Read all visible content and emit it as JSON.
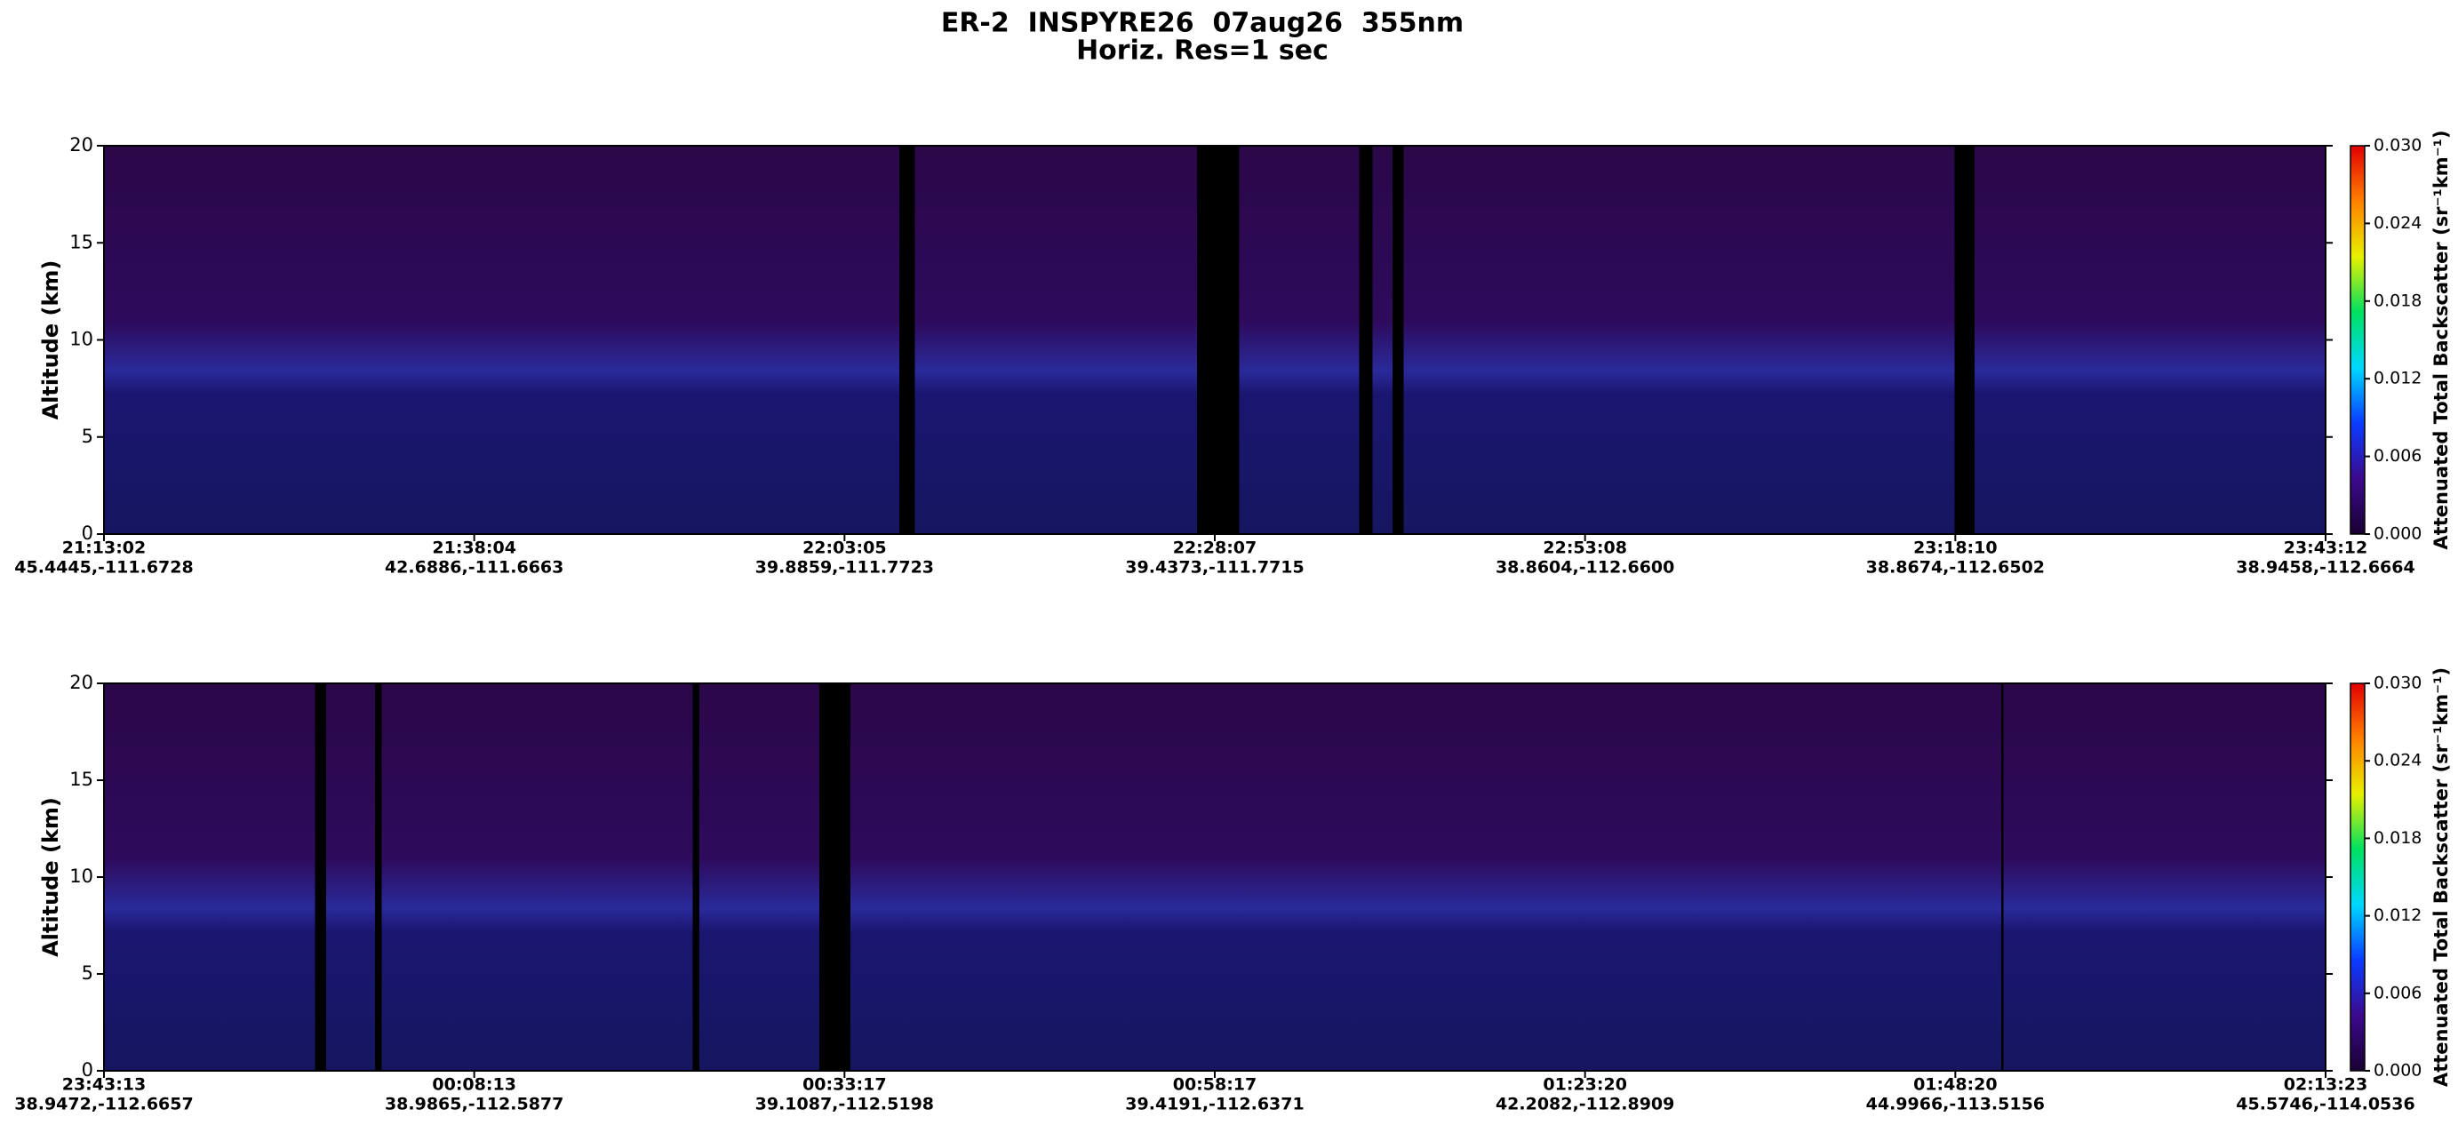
{
  "chart_data": [
    {
      "type": "curtain",
      "title": "ER-2  INSPYRE26  07aug26  355nm",
      "subtitle": "Horiz. Res=1 sec",
      "y_label": "Altitude (km)",
      "ylim": [
        0,
        20
      ],
      "yticks": [
        0,
        5,
        10,
        15,
        20
      ],
      "categories": [
        "21:13:02",
        "21:38:04",
        "22:03:05",
        "22:28:07",
        "22:53:08",
        "23:18:10",
        "23:43:12"
      ],
      "locations": [
        "45.4445,-111.6728",
        "42.6886,-111.6663",
        "39.8859,-111.7723",
        "39.4373,-111.7715",
        "38.8604,-112.6600",
        "38.8674,-112.6502",
        "38.9458,-112.6664"
      ],
      "colorbar": {
        "label": "Attenuated Total Backscatter (sr⁻¹km⁻¹)",
        "lim": [
          0,
          0.03
        ],
        "ticks": [
          {
            "value": 0,
            "label": "0.000"
          },
          {
            "value": 0.006,
            "label": "0.006"
          },
          {
            "value": 0.012,
            "label": "0.012"
          },
          {
            "value": 0.018,
            "label": "0.018"
          },
          {
            "value": 0.024,
            "label": "0.024"
          },
          {
            "value": 0.03,
            "label": "0.030"
          }
        ],
        "colors": [
          "#1a0033",
          "#3b0a8c",
          "#0a3cff",
          "#00d8ff",
          "#00e060",
          "#e8f000",
          "#ff8000",
          "#e00000"
        ]
      }
    },
    {
      "type": "curtain",
      "y_label": "Altitude (km)",
      "ylim": [
        0,
        20
      ],
      "yticks": [
        0,
        5,
        10,
        15,
        20
      ],
      "categories": [
        "23:43:13",
        "00:08:13",
        "00:33:17",
        "00:58:17",
        "01:23:20",
        "01:48:20",
        "02:13:23"
      ],
      "locations": [
        "38.9472,-112.6657",
        "38.9865,-112.5877",
        "39.1087,-112.5198",
        "39.4191,-112.6371",
        "42.2082,-112.8909",
        "44.9966,-113.5156",
        "45.5746,-114.0536"
      ],
      "colorbar": {
        "label": "Attenuated Total Backscatter (sr⁻¹km⁻¹)",
        "lim": [
          0,
          0.03
        ],
        "ticks": [
          {
            "value": 0,
            "label": "0.000"
          },
          {
            "value": 0.006,
            "label": "0.006"
          },
          {
            "value": 0.012,
            "label": "0.012"
          },
          {
            "value": 0.018,
            "label": "0.018"
          },
          {
            "value": 0.024,
            "label": "0.024"
          },
          {
            "value": 0.03,
            "label": "0.030"
          }
        ],
        "colors": [
          "#1a0033",
          "#3b0a8c",
          "#0a3cff",
          "#00d8ff",
          "#00e060",
          "#e8f000",
          "#ff8000",
          "#e00000"
        ]
      }
    }
  ]
}
